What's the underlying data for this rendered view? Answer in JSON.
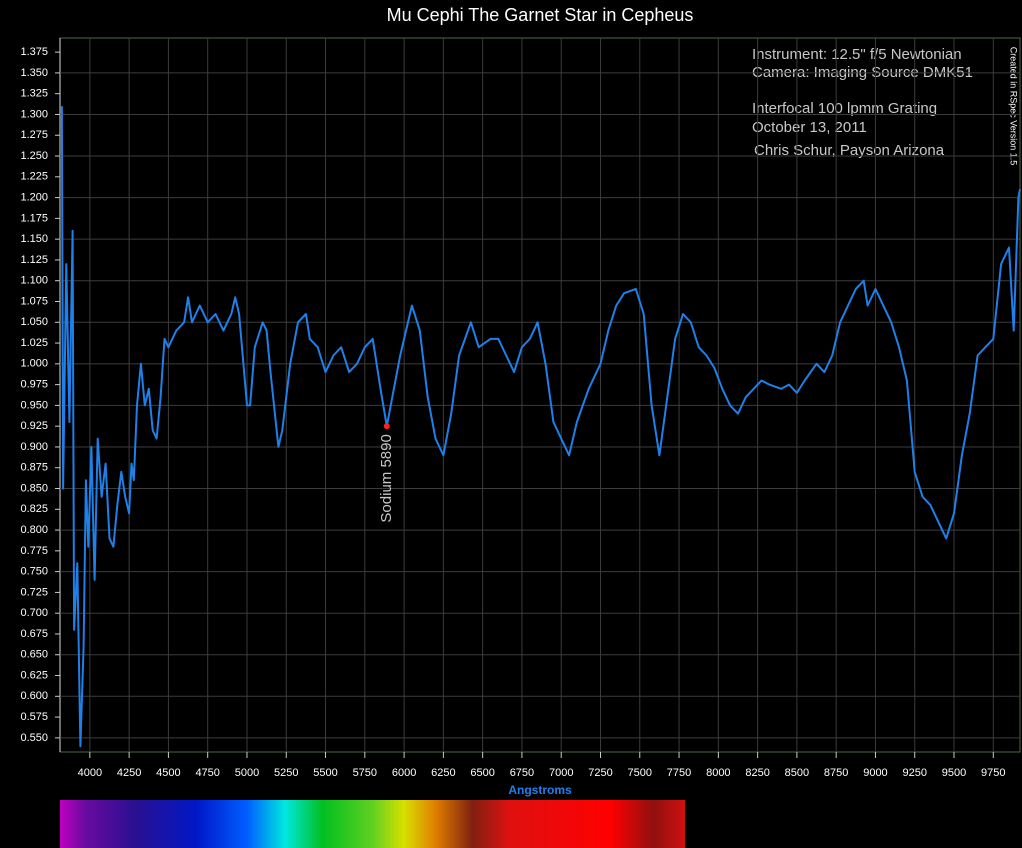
{
  "chart_data": {
    "type": "line",
    "title": "Mu Cephi The Garnet Star in Cepheus",
    "xlabel": "Angstroms",
    "notes": [
      "Instrument:  12.5\" f/5 Newtonian",
      "Camera: Imaging Source DMK51",
      "Interfocal 100 lpmm Grating",
      "October 13, 2011",
      "Chris Schur, Payson Arizona"
    ],
    "credit": "Created in RSpec Version 1.5",
    "annotation": {
      "text": "Sodium 5890",
      "x": 5890,
      "y": 0.925,
      "color": "#ff2020"
    },
    "color": "#1e80e8",
    "grid": true,
    "xlim": [
      3810,
      9920
    ],
    "ylim": [
      0.533,
      1.392
    ],
    "xticks": [
      4000,
      4250,
      4500,
      4750,
      5000,
      5250,
      5500,
      5750,
      6000,
      6250,
      6500,
      6750,
      7000,
      7250,
      7500,
      7750,
      8000,
      8250,
      8500,
      8750,
      9000,
      9250,
      9500,
      9750
    ],
    "yticks": [
      {
        "value": 0.55,
        "label": "0.550"
      },
      0.575,
      {
        "value": 0.6,
        "label": "0.600"
      },
      0.625,
      {
        "value": 0.65,
        "label": "0.650"
      },
      0.675,
      {
        "value": 0.7,
        "label": "0.700"
      },
      0.725,
      {
        "value": 0.75,
        "label": "0.750"
      },
      0.775,
      {
        "value": 0.8,
        "label": "0.800"
      },
      0.825,
      {
        "value": 0.85,
        "label": "0.850"
      },
      0.875,
      {
        "value": 0.9,
        "label": "0.900"
      },
      0.925,
      {
        "value": 0.95,
        "label": "0.950"
      },
      0.975,
      {
        "value": 1,
        "label": "1.000"
      },
      1.025,
      {
        "value": 1.05,
        "label": "1.050"
      },
      1.075,
      {
        "value": 1.1,
        "label": "1.100"
      },
      1.125,
      {
        "value": 1.15,
        "label": "1.150"
      },
      1.175,
      {
        "value": 1.2,
        "label": "1.200"
      },
      1.225,
      {
        "value": 1.25,
        "label": "1.250"
      },
      1.275,
      {
        "value": 1.3,
        "label": "1.300"
      },
      1.325,
      {
        "value": 1.35,
        "label": "1.350"
      },
      1.375
    ],
    "x": [
      3822,
      3830,
      3850,
      3870,
      3890,
      3900,
      3920,
      3940,
      3960,
      3975,
      3990,
      4010,
      4030,
      4050,
      4075,
      4100,
      4125,
      4150,
      4175,
      4200,
      4225,
      4250,
      4265,
      4280,
      4300,
      4325,
      4350,
      4375,
      4400,
      4425,
      4450,
      4475,
      4500,
      4550,
      4600,
      4625,
      4650,
      4700,
      4750,
      4800,
      4850,
      4900,
      4925,
      4950,
      5000,
      5020,
      5050,
      5100,
      5125,
      5150,
      5200,
      5225,
      5275,
      5325,
      5375,
      5400,
      5450,
      5500,
      5550,
      5600,
      5650,
      5700,
      5750,
      5800,
      5850,
      5890,
      5925,
      5975,
      6050,
      6100,
      6150,
      6200,
      6250,
      6300,
      6350,
      6425,
      6475,
      6550,
      6600,
      6650,
      6700,
      6750,
      6800,
      6850,
      6900,
      6950,
      7000,
      7050,
      7100,
      7175,
      7250,
      7300,
      7350,
      7400,
      7475,
      7525,
      7575,
      7625,
      7675,
      7725,
      7775,
      7825,
      7875,
      7925,
      7975,
      8025,
      8075,
      8125,
      8175,
      8225,
      8275,
      8325,
      8400,
      8450,
      8500,
      8550,
      8625,
      8675,
      8725,
      8775,
      8825,
      8875,
      8925,
      8950,
      9000,
      9050,
      9100,
      9150,
      9200,
      9250,
      9300,
      9350,
      9400,
      9450,
      9500,
      9550,
      9600,
      9650,
      9700,
      9750,
      9800,
      9850,
      9880,
      9910,
      9920
    ],
    "values": [
      1.31,
      0.85,
      1.12,
      0.93,
      1.16,
      0.68,
      0.76,
      0.54,
      0.66,
      0.86,
      0.78,
      0.9,
      0.74,
      0.91,
      0.84,
      0.88,
      0.79,
      0.78,
      0.83,
      0.87,
      0.84,
      0.82,
      0.88,
      0.86,
      0.95,
      1.0,
      0.95,
      0.97,
      0.92,
      0.91,
      0.96,
      1.03,
      1.02,
      1.04,
      1.05,
      1.08,
      1.05,
      1.07,
      1.05,
      1.06,
      1.04,
      1.06,
      1.08,
      1.06,
      0.95,
      0.95,
      1.02,
      1.05,
      1.04,
      0.99,
      0.9,
      0.92,
      1.0,
      1.05,
      1.06,
      1.03,
      1.02,
      0.99,
      1.01,
      1.02,
      0.99,
      1.0,
      1.02,
      1.03,
      0.97,
      0.925,
      0.96,
      1.01,
      1.07,
      1.04,
      0.96,
      0.91,
      0.89,
      0.94,
      1.01,
      1.05,
      1.02,
      1.03,
      1.03,
      1.01,
      0.99,
      1.02,
      1.03,
      1.05,
      1.0,
      0.93,
      0.91,
      0.89,
      0.93,
      0.97,
      1.0,
      1.04,
      1.07,
      1.085,
      1.09,
      1.06,
      0.95,
      0.89,
      0.96,
      1.03,
      1.06,
      1.05,
      1.02,
      1.01,
      0.995,
      0.97,
      0.95,
      0.94,
      0.96,
      0.97,
      0.98,
      0.975,
      0.97,
      0.975,
      0.965,
      0.98,
      1.0,
      0.99,
      1.01,
      1.05,
      1.07,
      1.09,
      1.1,
      1.07,
      1.09,
      1.07,
      1.05,
      1.02,
      0.98,
      0.87,
      0.84,
      0.83,
      0.81,
      0.79,
      0.82,
      0.89,
      0.94,
      1.01,
      1.02,
      1.03,
      1.12,
      1.14,
      1.04,
      1.2,
      1.21
    ]
  }
}
